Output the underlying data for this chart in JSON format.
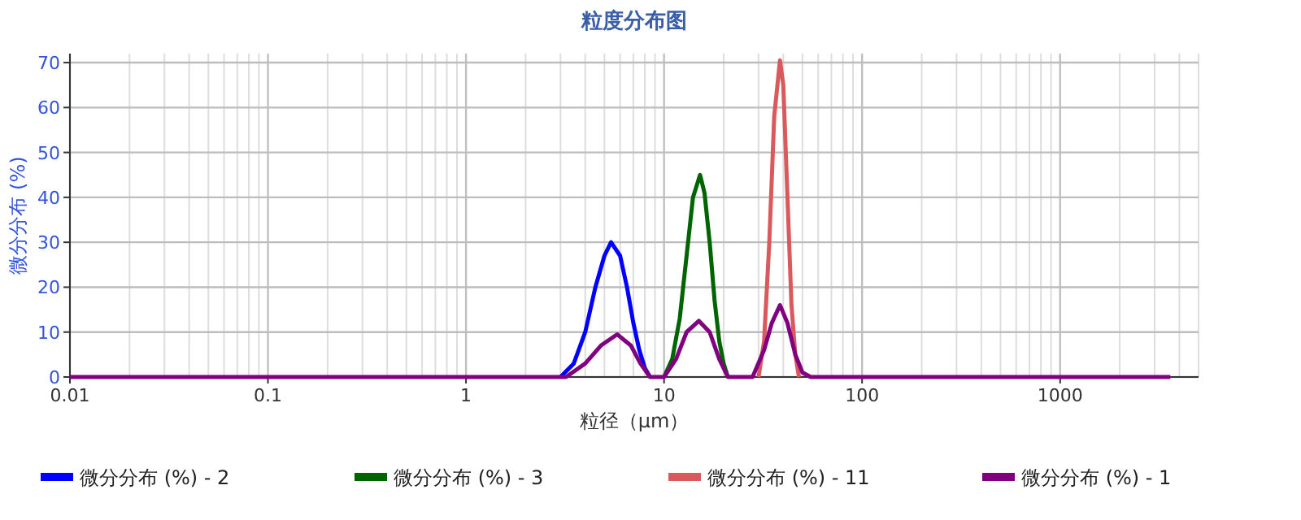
{
  "chart_data": {
    "type": "line",
    "title": "粒度分布图",
    "xlabel": "粒径（μm）",
    "ylabel": "微分分布 (%)",
    "log": "x",
    "xlim": [
      0.01,
      5000
    ],
    "ylim": [
      0,
      72
    ],
    "xticks": [
      0.01,
      0.1,
      1,
      10,
      100,
      1000
    ],
    "yticks": [
      0,
      10,
      20,
      30,
      40,
      50,
      60,
      70
    ],
    "grid": true,
    "legend": "bottom",
    "marker": "none",
    "line_style": "solid",
    "series": [
      {
        "name": "微分分布 (%) - 2",
        "color": "#0000ff",
        "x": [
          3.0,
          3.5,
          4.0,
          4.5,
          5.0,
          5.4,
          6.0,
          6.5,
          7.0,
          7.5,
          8.0,
          8.5
        ],
        "values": [
          0,
          3,
          10,
          20,
          27,
          30,
          27,
          20,
          12,
          6,
          2,
          0
        ]
      },
      {
        "name": "微分分布 (%) - 3",
        "color": "#006400",
        "x": [
          10,
          11,
          12,
          13,
          14,
          15.2,
          16,
          17,
          18,
          19,
          20,
          21
        ],
        "values": [
          0,
          4,
          13,
          27,
          40,
          45,
          41,
          30,
          17,
          8,
          3,
          0
        ]
      },
      {
        "name": "微分分布 (%) - 11",
        "color": "#d9595c",
        "x": [
          30,
          32,
          34,
          36,
          38.5,
          40,
          42,
          44,
          46,
          48
        ],
        "values": [
          0,
          8,
          30,
          58,
          70.5,
          65,
          40,
          16,
          5,
          0
        ]
      },
      {
        "name": "微分分布 (%) - 1",
        "color": "#800080",
        "x": [
          0.01,
          3.2,
          4.0,
          4.8,
          5.8,
          6.8,
          7.6,
          8.5,
          10,
          11.5,
          13,
          15,
          17,
          19,
          21,
          28,
          32,
          35,
          38.5,
          42,
          46,
          50,
          55,
          3600
        ],
        "values": [
          0,
          0,
          3,
          7,
          9.5,
          7,
          3,
          0,
          0,
          4,
          10,
          12.5,
          10,
          4,
          0,
          0,
          6,
          12,
          16,
          12,
          5,
          1,
          0,
          0
        ]
      }
    ]
  }
}
